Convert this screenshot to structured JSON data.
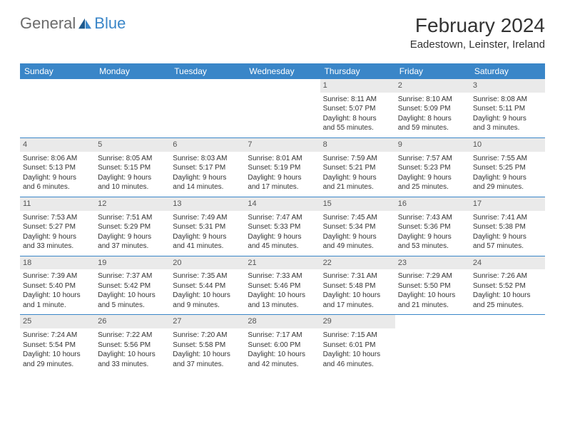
{
  "brand": {
    "part1": "General",
    "part2": "Blue"
  },
  "title": "February 2024",
  "location": "Eadestown, Leinster, Ireland",
  "colors": {
    "header_bg": "#3a86c8",
    "header_text": "#ffffff",
    "border": "#3a86c8",
    "daynum_bg": "#eaeaea",
    "body_text": "#333333",
    "logo_gray": "#6b6b6b",
    "logo_blue": "#3a86c8",
    "page_bg": "#ffffff"
  },
  "typography": {
    "title_fontsize": 28,
    "location_fontsize": 15,
    "header_fontsize": 12,
    "cell_fontsize": 10,
    "daynum_fontsize": 11,
    "logo_fontsize": 22
  },
  "dayHeaders": [
    "Sunday",
    "Monday",
    "Tuesday",
    "Wednesday",
    "Thursday",
    "Friday",
    "Saturday"
  ],
  "weeks": [
    [
      null,
      null,
      null,
      null,
      {
        "d": "1",
        "sr": "Sunrise: 8:11 AM",
        "ss": "Sunset: 5:07 PM",
        "dl1": "Daylight: 8 hours",
        "dl2": "and 55 minutes."
      },
      {
        "d": "2",
        "sr": "Sunrise: 8:10 AM",
        "ss": "Sunset: 5:09 PM",
        "dl1": "Daylight: 8 hours",
        "dl2": "and 59 minutes."
      },
      {
        "d": "3",
        "sr": "Sunrise: 8:08 AM",
        "ss": "Sunset: 5:11 PM",
        "dl1": "Daylight: 9 hours",
        "dl2": "and 3 minutes."
      }
    ],
    [
      {
        "d": "4",
        "sr": "Sunrise: 8:06 AM",
        "ss": "Sunset: 5:13 PM",
        "dl1": "Daylight: 9 hours",
        "dl2": "and 6 minutes."
      },
      {
        "d": "5",
        "sr": "Sunrise: 8:05 AM",
        "ss": "Sunset: 5:15 PM",
        "dl1": "Daylight: 9 hours",
        "dl2": "and 10 minutes."
      },
      {
        "d": "6",
        "sr": "Sunrise: 8:03 AM",
        "ss": "Sunset: 5:17 PM",
        "dl1": "Daylight: 9 hours",
        "dl2": "and 14 minutes."
      },
      {
        "d": "7",
        "sr": "Sunrise: 8:01 AM",
        "ss": "Sunset: 5:19 PM",
        "dl1": "Daylight: 9 hours",
        "dl2": "and 17 minutes."
      },
      {
        "d": "8",
        "sr": "Sunrise: 7:59 AM",
        "ss": "Sunset: 5:21 PM",
        "dl1": "Daylight: 9 hours",
        "dl2": "and 21 minutes."
      },
      {
        "d": "9",
        "sr": "Sunrise: 7:57 AM",
        "ss": "Sunset: 5:23 PM",
        "dl1": "Daylight: 9 hours",
        "dl2": "and 25 minutes."
      },
      {
        "d": "10",
        "sr": "Sunrise: 7:55 AM",
        "ss": "Sunset: 5:25 PM",
        "dl1": "Daylight: 9 hours",
        "dl2": "and 29 minutes."
      }
    ],
    [
      {
        "d": "11",
        "sr": "Sunrise: 7:53 AM",
        "ss": "Sunset: 5:27 PM",
        "dl1": "Daylight: 9 hours",
        "dl2": "and 33 minutes."
      },
      {
        "d": "12",
        "sr": "Sunrise: 7:51 AM",
        "ss": "Sunset: 5:29 PM",
        "dl1": "Daylight: 9 hours",
        "dl2": "and 37 minutes."
      },
      {
        "d": "13",
        "sr": "Sunrise: 7:49 AM",
        "ss": "Sunset: 5:31 PM",
        "dl1": "Daylight: 9 hours",
        "dl2": "and 41 minutes."
      },
      {
        "d": "14",
        "sr": "Sunrise: 7:47 AM",
        "ss": "Sunset: 5:33 PM",
        "dl1": "Daylight: 9 hours",
        "dl2": "and 45 minutes."
      },
      {
        "d": "15",
        "sr": "Sunrise: 7:45 AM",
        "ss": "Sunset: 5:34 PM",
        "dl1": "Daylight: 9 hours",
        "dl2": "and 49 minutes."
      },
      {
        "d": "16",
        "sr": "Sunrise: 7:43 AM",
        "ss": "Sunset: 5:36 PM",
        "dl1": "Daylight: 9 hours",
        "dl2": "and 53 minutes."
      },
      {
        "d": "17",
        "sr": "Sunrise: 7:41 AM",
        "ss": "Sunset: 5:38 PM",
        "dl1": "Daylight: 9 hours",
        "dl2": "and 57 minutes."
      }
    ],
    [
      {
        "d": "18",
        "sr": "Sunrise: 7:39 AM",
        "ss": "Sunset: 5:40 PM",
        "dl1": "Daylight: 10 hours",
        "dl2": "and 1 minute."
      },
      {
        "d": "19",
        "sr": "Sunrise: 7:37 AM",
        "ss": "Sunset: 5:42 PM",
        "dl1": "Daylight: 10 hours",
        "dl2": "and 5 minutes."
      },
      {
        "d": "20",
        "sr": "Sunrise: 7:35 AM",
        "ss": "Sunset: 5:44 PM",
        "dl1": "Daylight: 10 hours",
        "dl2": "and 9 minutes."
      },
      {
        "d": "21",
        "sr": "Sunrise: 7:33 AM",
        "ss": "Sunset: 5:46 PM",
        "dl1": "Daylight: 10 hours",
        "dl2": "and 13 minutes."
      },
      {
        "d": "22",
        "sr": "Sunrise: 7:31 AM",
        "ss": "Sunset: 5:48 PM",
        "dl1": "Daylight: 10 hours",
        "dl2": "and 17 minutes."
      },
      {
        "d": "23",
        "sr": "Sunrise: 7:29 AM",
        "ss": "Sunset: 5:50 PM",
        "dl1": "Daylight: 10 hours",
        "dl2": "and 21 minutes."
      },
      {
        "d": "24",
        "sr": "Sunrise: 7:26 AM",
        "ss": "Sunset: 5:52 PM",
        "dl1": "Daylight: 10 hours",
        "dl2": "and 25 minutes."
      }
    ],
    [
      {
        "d": "25",
        "sr": "Sunrise: 7:24 AM",
        "ss": "Sunset: 5:54 PM",
        "dl1": "Daylight: 10 hours",
        "dl2": "and 29 minutes."
      },
      {
        "d": "26",
        "sr": "Sunrise: 7:22 AM",
        "ss": "Sunset: 5:56 PM",
        "dl1": "Daylight: 10 hours",
        "dl2": "and 33 minutes."
      },
      {
        "d": "27",
        "sr": "Sunrise: 7:20 AM",
        "ss": "Sunset: 5:58 PM",
        "dl1": "Daylight: 10 hours",
        "dl2": "and 37 minutes."
      },
      {
        "d": "28",
        "sr": "Sunrise: 7:17 AM",
        "ss": "Sunset: 6:00 PM",
        "dl1": "Daylight: 10 hours",
        "dl2": "and 42 minutes."
      },
      {
        "d": "29",
        "sr": "Sunrise: 7:15 AM",
        "ss": "Sunset: 6:01 PM",
        "dl1": "Daylight: 10 hours",
        "dl2": "and 46 minutes."
      },
      null,
      null
    ]
  ]
}
